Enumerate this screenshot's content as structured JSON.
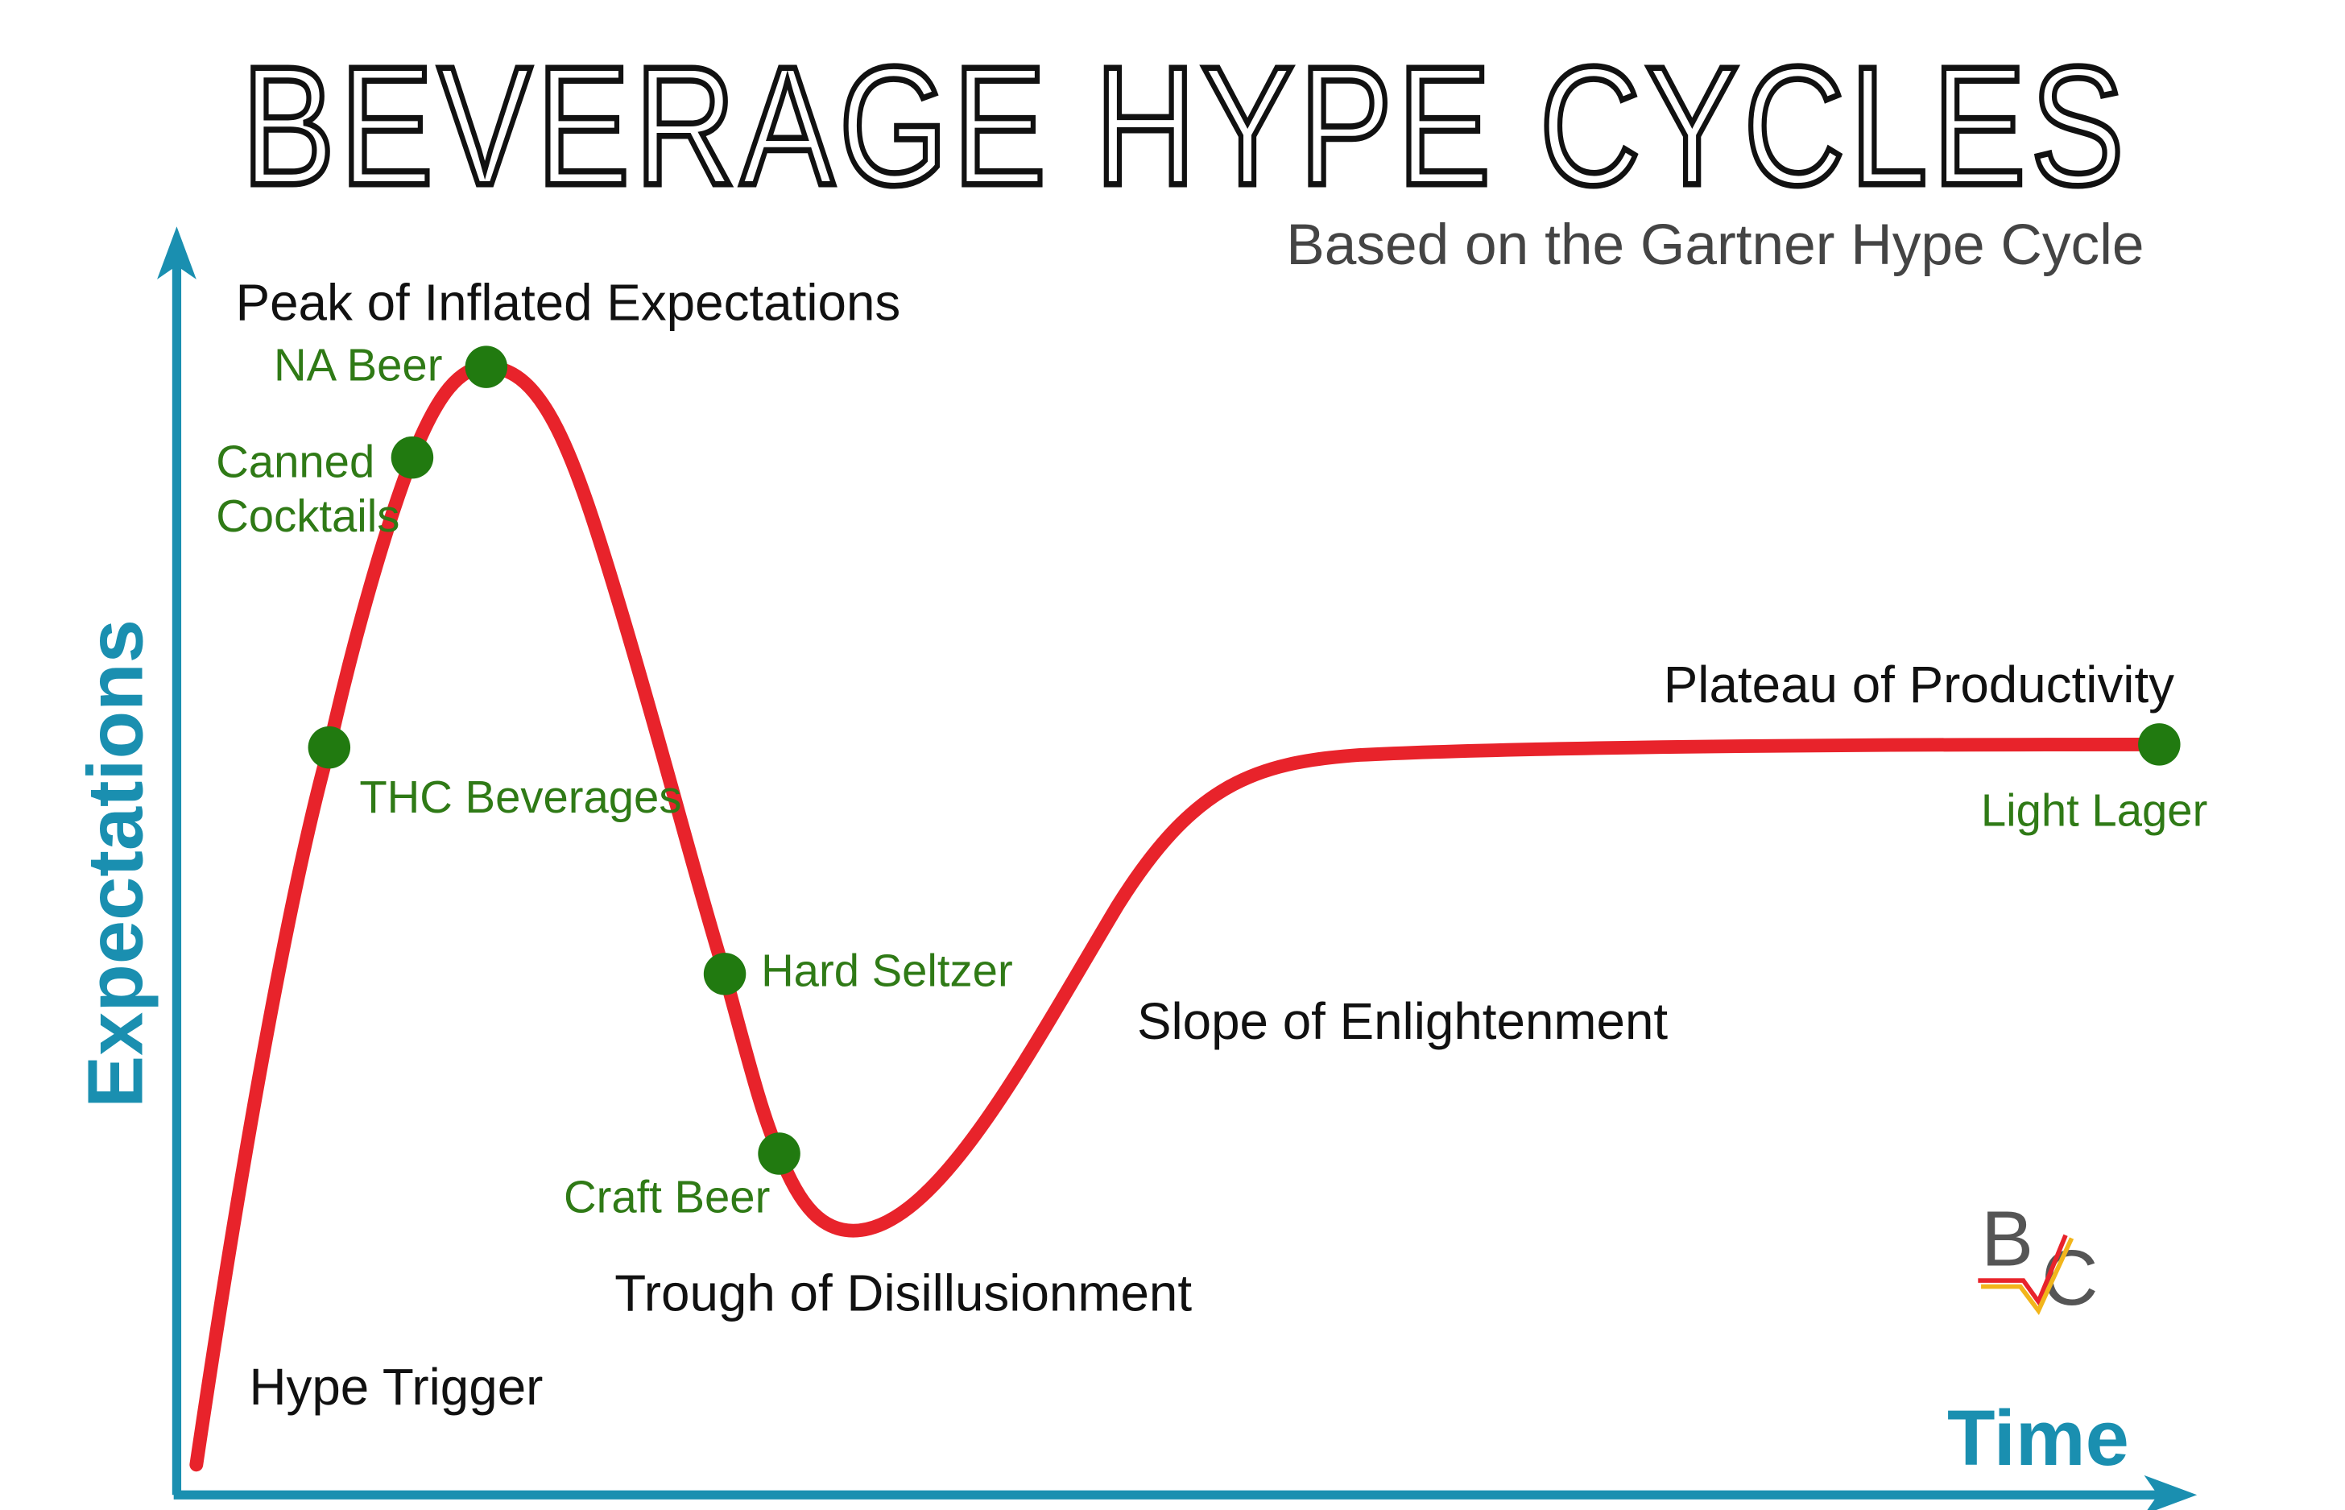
{
  "title": "BEVERAGE HYPE CYCLES",
  "subtitle": "Based on the Gartner Hype Cycle",
  "axes": {
    "y": "Expectations",
    "x": "Time"
  },
  "phases": [
    "Peak of Inflated Expectations",
    "Plateau of Productivity",
    "Slope of Enlightenment",
    "Trough of Disillusionment",
    "Hype Trigger"
  ],
  "items": [
    "NA Beer",
    "Canned Cocktails",
    "THC Beverages",
    "Hard Seltzer",
    "Craft Beer",
    "Light Lager"
  ],
  "logo": {
    "left": "B",
    "right": "C"
  }
}
